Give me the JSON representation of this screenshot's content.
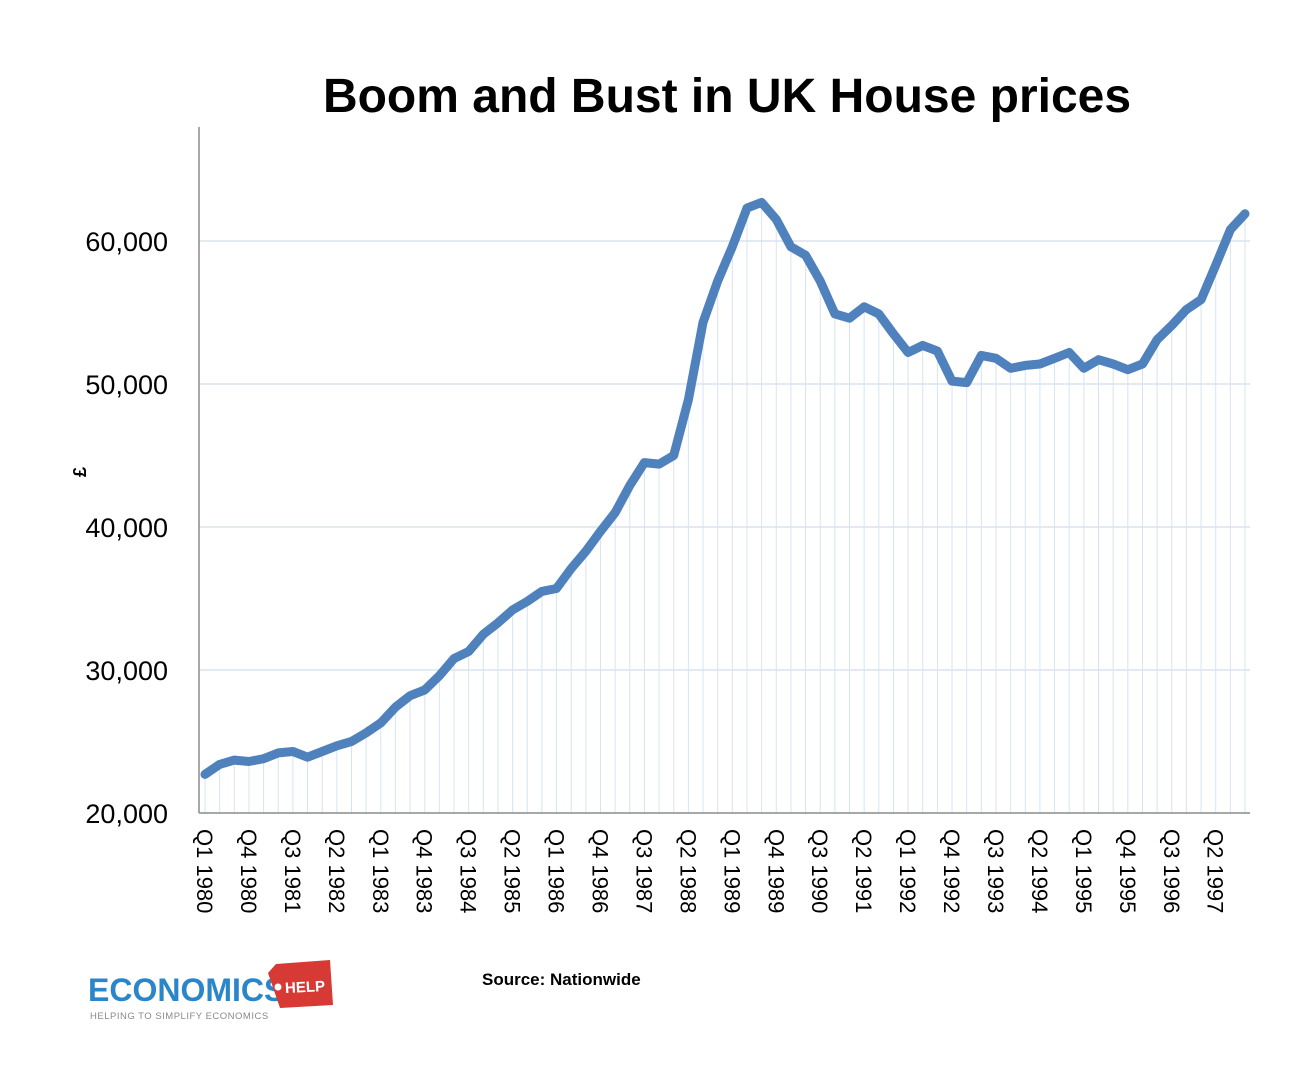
{
  "chart_data": {
    "type": "line",
    "title": "Boom and Bust in UK House prices",
    "ylabel": "£",
    "xlabel": "",
    "ylim": [
      20000,
      68000
    ],
    "yticks": [
      20000,
      30000,
      40000,
      50000,
      60000
    ],
    "ytick_labels": [
      "20,000",
      "30,000",
      "40,000",
      "50,000",
      "60,000"
    ],
    "grid": "horizontal",
    "color": "#4f81bd",
    "x": [
      "Q1 1980",
      "Q2 1980",
      "Q3 1980",
      "Q4 1980",
      "Q1 1981",
      "Q2 1981",
      "Q3 1981",
      "Q4 1981",
      "Q1 1982",
      "Q2 1982",
      "Q3 1982",
      "Q4 1982",
      "Q1 1983",
      "Q2 1983",
      "Q3 1983",
      "Q4 1983",
      "Q1 1984",
      "Q2 1984",
      "Q3 1984",
      "Q4 1984",
      "Q1 1985",
      "Q2 1985",
      "Q3 1985",
      "Q4 1985",
      "Q1 1986",
      "Q2 1986",
      "Q3 1986",
      "Q4 1986",
      "Q1 1987",
      "Q2 1987",
      "Q3 1987",
      "Q4 1987",
      "Q1 1988",
      "Q2 1988",
      "Q3 1988",
      "Q4 1988",
      "Q1 1989",
      "Q2 1989",
      "Q3 1989",
      "Q4 1989",
      "Q1 1990",
      "Q2 1990",
      "Q3 1990",
      "Q4 1990",
      "Q1 1991",
      "Q2 1991",
      "Q3 1991",
      "Q4 1991",
      "Q1 1992",
      "Q2 1992",
      "Q3 1992",
      "Q4 1992",
      "Q1 1993",
      "Q2 1993",
      "Q3 1993",
      "Q4 1993",
      "Q1 1994",
      "Q2 1994",
      "Q3 1994",
      "Q4 1994",
      "Q1 1995",
      "Q2 1995",
      "Q3 1995",
      "Q4 1995",
      "Q1 1996",
      "Q2 1996",
      "Q3 1996",
      "Q4 1996",
      "Q1 1997",
      "Q2 1997",
      "Q3 1997",
      "Q4 1997"
    ],
    "tick_labels": [
      "Q1 1980",
      "Q4 1980",
      "Q3 1981",
      "Q2 1982",
      "Q1 1983",
      "Q4 1983",
      "Q3 1984",
      "Q2 1985",
      "Q1 1986",
      "Q4 1986",
      "Q3 1987",
      "Q2 1988",
      "Q1 1989",
      "Q4 1989",
      "Q3 1990",
      "Q2 1991",
      "Q1 1992",
      "Q4 1992",
      "Q3 1993",
      "Q2 1994",
      "Q1 1995",
      "Q4 1995",
      "Q3 1996",
      "Q2 1997"
    ],
    "values": [
      22700,
      23400,
      23700,
      23600,
      23800,
      24200,
      24300,
      23900,
      24300,
      24700,
      25000,
      25600,
      26300,
      27400,
      28200,
      28600,
      29600,
      30800,
      31300,
      32500,
      33300,
      34200,
      34800,
      35500,
      35700,
      37100,
      38300,
      39700,
      41000,
      42900,
      44500,
      44400,
      45000,
      48900,
      54300,
      57200,
      59600,
      62300,
      62700,
      61500,
      59600,
      59000,
      57200,
      54900,
      54600,
      55400,
      54900,
      53500,
      52200,
      52700,
      52300,
      50200,
      50100,
      52000,
      51800,
      51100,
      51300,
      51400,
      51800,
      52200,
      51100,
      51700,
      51400,
      51000,
      51400,
      53100,
      54100,
      55200,
      55900,
      58300,
      60800,
      61900
    ]
  },
  "source": "Source: Nationwide",
  "logo": {
    "main": "ECONOMICS",
    "badge": "HELP",
    "tagline": "HELPING TO SIMPLIFY ECONOMICS"
  }
}
